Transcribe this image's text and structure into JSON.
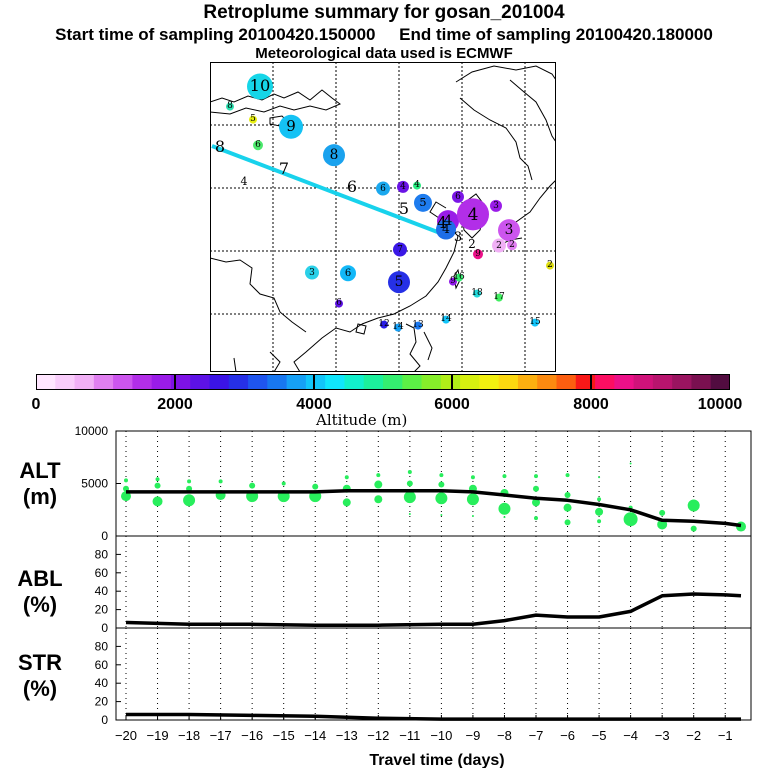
{
  "header": {
    "title": "Retroplume summary for gosan_201004",
    "start_sampling": "Start time of sampling 20100420.150000",
    "end_sampling": "End time of sampling 20100420.180000",
    "met_data": "Meteorological data used is ECMWF"
  },
  "colorbar": {
    "title": "Altitude (m)",
    "tick_labels": [
      "0",
      "2000",
      "4000",
      "6000",
      "8000",
      "10000"
    ],
    "colors": [
      "#ffe6ff",
      "#f9cdfb",
      "#f1b0f6",
      "#e07ff0",
      "#cc55ee",
      "#b22ee8",
      "#9a1ce8",
      "#7e12e6",
      "#5d12e6",
      "#3b14e6",
      "#2630e6",
      "#1f55ee",
      "#1877f0",
      "#16a0f6",
      "#12c5fa",
      "#10e6fc",
      "#12f0cc",
      "#1cf09c",
      "#34ee70",
      "#5cf046",
      "#86ee2a",
      "#b0ee18",
      "#d6f010",
      "#f2f010",
      "#fcd810",
      "#fcb010",
      "#fc8a10",
      "#fc5e10",
      "#f81818",
      "#fc0e62",
      "#ec1088",
      "#d0127a",
      "#b8146e",
      "#9a1460",
      "#7a1050",
      "#520c40"
    ]
  },
  "map": {
    "trajectory_labels": [
      {
        "text": "10",
        "size": 13,
        "color": "#16d6e8"
      },
      {
        "text": "9",
        "size": 12,
        "color": "#14c2f4"
      },
      {
        "text": "8",
        "size": 11,
        "color": "#1aa2ee"
      },
      {
        "text": "8",
        "size": 4,
        "color": "#2ce0b0"
      },
      {
        "text": "5",
        "size": 4,
        "color": "#e6ee10"
      },
      {
        "text": "6",
        "size": 5,
        "color": "#4ce86c"
      },
      {
        "text": "6",
        "size": 7,
        "color": "#1aa8ee"
      },
      {
        "text": "4",
        "size": 6,
        "color": "#6a14e6"
      },
      {
        "text": "4",
        "size": 4,
        "color": "#28ee80"
      },
      {
        "text": "6",
        "size": 6,
        "color": "#7a16e6"
      },
      {
        "text": "5",
        "size": 9,
        "color": "#1e7cee"
      },
      {
        "text": "4",
        "size": 11,
        "color": "#9a1ce8"
      },
      {
        "text": "4",
        "size": 16,
        "color": "#b22ee8"
      },
      {
        "text": "4",
        "size": 10,
        "color": "#1e6ee8"
      },
      {
        "text": "3",
        "size": 11,
        "color": "#cc55ee"
      },
      {
        "text": "3",
        "size": 6,
        "color": "#9a1ce8"
      },
      {
        "text": "2",
        "size": 7,
        "color": "#f1b0f6"
      },
      {
        "text": "2",
        "size": 5,
        "color": "#e07ff0"
      },
      {
        "text": "3",
        "size": 7,
        "color": "#2ad0e8"
      },
      {
        "text": "6",
        "size": 8,
        "color": "#12b8f8"
      },
      {
        "text": "7",
        "size": 7,
        "color": "#3a18e6"
      },
      {
        "text": "5",
        "size": 11,
        "color": "#2630e6"
      },
      {
        "text": "2",
        "size": 4,
        "color": "#dede10"
      },
      {
        "text": "9",
        "size": 5,
        "color": "#ec1088"
      },
      {
        "text": "9",
        "size": 4,
        "color": "#8e18e6"
      },
      {
        "text": "18",
        "size": 4,
        "color": "#22d8d8"
      },
      {
        "text": "17",
        "size": 4,
        "color": "#40ee60"
      },
      {
        "text": "16",
        "size": 4,
        "color": "#34ee70"
      },
      {
        "text": "12",
        "size": 4,
        "color": "#2a1ce6"
      },
      {
        "text": "14",
        "size": 4,
        "color": "#12c5fa"
      },
      {
        "text": "15",
        "size": 4,
        "color": "#12c5fa"
      },
      {
        "text": "14",
        "size": 4,
        "color": "#16a0f6"
      },
      {
        "text": "13",
        "size": 4,
        "color": "#1877f0"
      },
      {
        "text": "6",
        "size": 4,
        "color": "#5d12e6"
      }
    ],
    "mean_path_labels": [
      "8",
      "7",
      "6",
      "5",
      "4",
      "3",
      "2"
    ],
    "free_labels": [
      "4"
    ]
  },
  "chart_data": {
    "type": "line",
    "xlabel": "Travel time (days)",
    "x_ticks": [
      -20,
      -19,
      -18,
      -17,
      -16,
      -15,
      -14,
      -13,
      -12,
      -11,
      -10,
      -9,
      -8,
      -7,
      -6,
      -5,
      -4,
      -3,
      -2,
      -1
    ],
    "panels": [
      {
        "name": "ALT",
        "ylabel": "ALT\n(m)",
        "ylim": [
          0,
          10000
        ],
        "y_ticks": [
          0,
          5000,
          10000
        ],
        "mean_line": {
          "x": [
            -20,
            -18,
            -16,
            -14,
            -13,
            -12,
            -11,
            -10,
            -9,
            -8,
            -7,
            -6,
            -5,
            -4,
            -3,
            -2,
            -1,
            -0.5
          ],
          "y": [
            4200,
            4200,
            4200,
            4200,
            4300,
            4300,
            4300,
            4300,
            4200,
            3900,
            3600,
            3400,
            3000,
            2500,
            1500,
            1400,
            1200,
            1000
          ]
        },
        "scatter_color": "#28ee5c",
        "scatter_points": [
          {
            "x": -20,
            "y": 3800,
            "s": 5
          },
          {
            "x": -20,
            "y": 4500,
            "s": 3
          },
          {
            "x": -20,
            "y": 5300,
            "s": 2
          },
          {
            "x": -19,
            "y": 3300,
            "s": 5
          },
          {
            "x": -19,
            "y": 4800,
            "s": 3
          },
          {
            "x": -19,
            "y": 5400,
            "s": 2
          },
          {
            "x": -18,
            "y": 3400,
            "s": 6
          },
          {
            "x": -18,
            "y": 4500,
            "s": 3
          },
          {
            "x": -18,
            "y": 5200,
            "s": 2
          },
          {
            "x": -17,
            "y": 3900,
            "s": 5
          },
          {
            "x": -17,
            "y": 5200,
            "s": 2
          },
          {
            "x": -16,
            "y": 3800,
            "s": 6
          },
          {
            "x": -16,
            "y": 4800,
            "s": 3
          },
          {
            "x": -15,
            "y": 3800,
            "s": 6
          },
          {
            "x": -15,
            "y": 5000,
            "s": 2
          },
          {
            "x": -14,
            "y": 3800,
            "s": 6
          },
          {
            "x": -14,
            "y": 4700,
            "s": 3
          },
          {
            "x": -13,
            "y": 3200,
            "s": 4
          },
          {
            "x": -13,
            "y": 4500,
            "s": 4
          },
          {
            "x": -13,
            "y": 5600,
            "s": 2
          },
          {
            "x": -12,
            "y": 3500,
            "s": 4
          },
          {
            "x": -12,
            "y": 4900,
            "s": 4
          },
          {
            "x": -12,
            "y": 5800,
            "s": 2
          },
          {
            "x": -11,
            "y": 3700,
            "s": 6
          },
          {
            "x": -11,
            "y": 5000,
            "s": 3
          },
          {
            "x": -11,
            "y": 6100,
            "s": 2
          },
          {
            "x": -11,
            "y": 2100,
            "s": 1
          },
          {
            "x": -10,
            "y": 3600,
            "s": 6
          },
          {
            "x": -10,
            "y": 4900,
            "s": 3
          },
          {
            "x": -10,
            "y": 5800,
            "s": 2
          },
          {
            "x": -10,
            "y": 2000,
            "s": 1
          },
          {
            "x": -9,
            "y": 3500,
            "s": 6
          },
          {
            "x": -9,
            "y": 4500,
            "s": 4
          },
          {
            "x": -9,
            "y": 5600,
            "s": 2
          },
          {
            "x": -9,
            "y": 1900,
            "s": 1
          },
          {
            "x": -8,
            "y": 2600,
            "s": 6
          },
          {
            "x": -8,
            "y": 4100,
            "s": 4
          },
          {
            "x": -8,
            "y": 5700,
            "s": 2
          },
          {
            "x": -8,
            "y": 1800,
            "s": 1
          },
          {
            "x": -7,
            "y": 3200,
            "s": 4
          },
          {
            "x": -7,
            "y": 4500,
            "s": 3
          },
          {
            "x": -7,
            "y": 5700,
            "s": 2
          },
          {
            "x": -7,
            "y": 1700,
            "s": 2
          },
          {
            "x": -6,
            "y": 2700,
            "s": 4
          },
          {
            "x": -6,
            "y": 3900,
            "s": 3
          },
          {
            "x": -6,
            "y": 5800,
            "s": 2
          },
          {
            "x": -6,
            "y": 1300,
            "s": 3
          },
          {
            "x": -5,
            "y": 2300,
            "s": 4
          },
          {
            "x": -5,
            "y": 3500,
            "s": 2
          },
          {
            "x": -5,
            "y": 5600,
            "s": 1
          },
          {
            "x": -5,
            "y": 1400,
            "s": 2
          },
          {
            "x": -4,
            "y": 1600,
            "s": 7
          },
          {
            "x": -4,
            "y": 2700,
            "s": 2
          },
          {
            "x": -4,
            "y": 6900,
            "s": 1
          },
          {
            "x": -3,
            "y": 1100,
            "s": 5
          },
          {
            "x": -3,
            "y": 2200,
            "s": 3
          },
          {
            "x": -2,
            "y": 700,
            "s": 3
          },
          {
            "x": -2,
            "y": 2900,
            "s": 6
          },
          {
            "x": -0.5,
            "y": 900,
            "s": 5
          }
        ]
      },
      {
        "name": "ABL",
        "ylabel": "ABL\n(%)",
        "ylim": [
          0,
          100
        ],
        "y_ticks": [
          0,
          20,
          40,
          60,
          80
        ],
        "mean_line": {
          "x": [
            -20,
            -18,
            -16,
            -14,
            -12,
            -10,
            -9,
            -8,
            -7,
            -6,
            -5,
            -4,
            -3,
            -2,
            -1,
            -0.5
          ],
          "y": [
            6,
            4,
            4,
            3,
            3,
            4,
            4,
            8,
            14,
            12,
            12,
            18,
            35,
            37,
            36,
            35
          ]
        }
      },
      {
        "name": "STR",
        "ylabel": "STR\n(%)",
        "ylim": [
          0,
          100
        ],
        "y_ticks": [
          0,
          20,
          40,
          60,
          80
        ],
        "mean_line": {
          "x": [
            -20,
            -18,
            -16,
            -14,
            -13,
            -12,
            -10,
            -8,
            -6,
            -4,
            -2,
            -1,
            -0.5
          ],
          "y": [
            6,
            6,
            5,
            4,
            3,
            2,
            1,
            1,
            1,
            1,
            1,
            1,
            1
          ]
        }
      }
    ]
  }
}
